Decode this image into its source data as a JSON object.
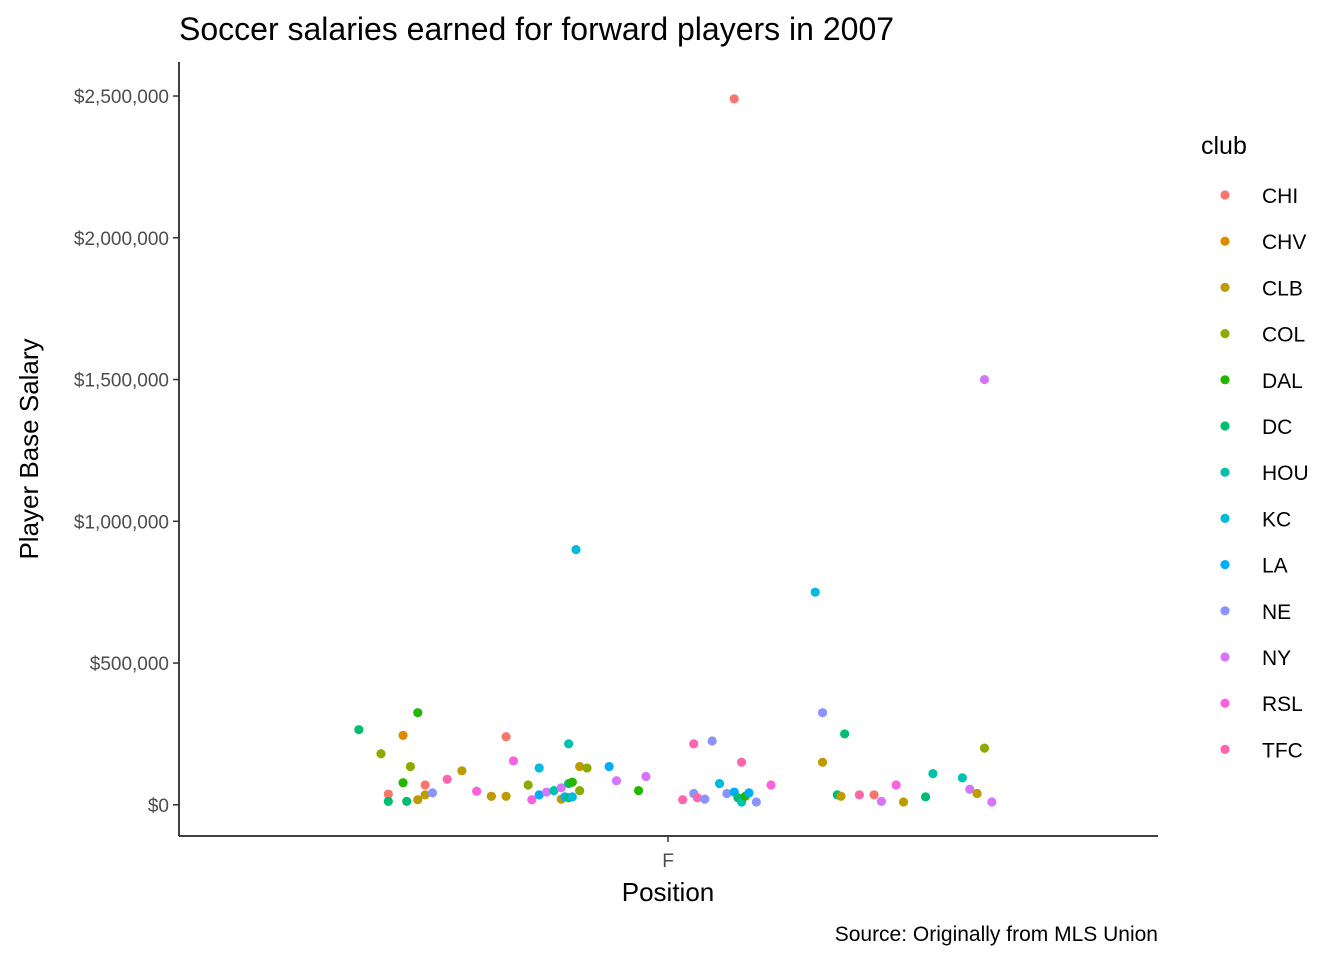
{
  "chart_data": {
    "type": "scatter",
    "title": "Soccer salaries earned for forward players in 2007",
    "xlabel": "Position",
    "ylabel": "Player Base Salary",
    "caption": "Source: Originally from MLS Union",
    "x_categories": [
      "F"
    ],
    "ylim": [
      -110000,
      2620000
    ],
    "y_ticks": [
      0,
      500000,
      1000000,
      1500000,
      2000000,
      2500000
    ],
    "y_tick_labels": [
      "$0",
      "$500,000",
      "$1,000,000",
      "$1,500,000",
      "$2,000,000",
      "$2,500,000"
    ],
    "grid": false,
    "legend": {
      "title": "club",
      "placement": "right",
      "entries": [
        "CHI",
        "CHV",
        "CLB",
        "COL",
        "DAL",
        "DC",
        "HOU",
        "KC",
        "LA",
        "NE",
        "NY",
        "RSL",
        "TFC"
      ]
    },
    "colors": {
      "CHI": "#F8766D",
      "CHV": "#E18A00",
      "CLB": "#BE9C00",
      "COL": "#8CAB00",
      "DAL": "#24B700",
      "DC": "#00BE70",
      "HOU": "#00C1AB",
      "KC": "#00BBDA",
      "LA": "#00ACFC",
      "NE": "#8B93FF",
      "NY": "#D575FE",
      "RSL": "#F962DD",
      "TFC": "#FF65AC"
    },
    "jitter_note": "horizontal spread within category F is random jitter",
    "points": [
      {
        "club": "DC",
        "x": -0.42,
        "y": 265000
      },
      {
        "club": "COL",
        "x": -0.39,
        "y": 180000
      },
      {
        "club": "CHI",
        "x": -0.38,
        "y": 38000
      },
      {
        "club": "DC",
        "x": -0.38,
        "y": 12000
      },
      {
        "club": "CHV",
        "x": -0.36,
        "y": 245000
      },
      {
        "club": "DAL",
        "x": -0.36,
        "y": 78000
      },
      {
        "club": "DC",
        "x": -0.355,
        "y": 12000
      },
      {
        "club": "COL",
        "x": -0.35,
        "y": 135000
      },
      {
        "club": "DAL",
        "x": -0.34,
        "y": 325000
      },
      {
        "club": "CLB",
        "x": -0.34,
        "y": 18000
      },
      {
        "club": "CLB",
        "x": -0.33,
        "y": 35000
      },
      {
        "club": "CHI",
        "x": -0.33,
        "y": 70000
      },
      {
        "club": "NE",
        "x": -0.32,
        "y": 42000
      },
      {
        "club": "TFC",
        "x": -0.3,
        "y": 90000
      },
      {
        "club": "CLB",
        "x": -0.28,
        "y": 120000
      },
      {
        "club": "RSL",
        "x": -0.26,
        "y": 48000
      },
      {
        "club": "NY",
        "x": -0.24,
        "y": 30000
      },
      {
        "club": "CLB",
        "x": -0.24,
        "y": 30000
      },
      {
        "club": "CLB",
        "x": -0.22,
        "y": 30000
      },
      {
        "club": "CHI",
        "x": -0.22,
        "y": 240000
      },
      {
        "club": "RSL",
        "x": -0.21,
        "y": 155000
      },
      {
        "club": "COL",
        "x": -0.19,
        "y": 70000
      },
      {
        "club": "RSL",
        "x": -0.185,
        "y": 18000
      },
      {
        "club": "LA",
        "x": -0.175,
        "y": 35000
      },
      {
        "club": "KC",
        "x": -0.175,
        "y": 130000
      },
      {
        "club": "NY",
        "x": -0.165,
        "y": 45000
      },
      {
        "club": "HOU",
        "x": -0.155,
        "y": 50000
      },
      {
        "club": "NY",
        "x": -0.145,
        "y": 60000
      },
      {
        "club": "CLB",
        "x": -0.145,
        "y": 20000
      },
      {
        "club": "LA",
        "x": -0.14,
        "y": 28000
      },
      {
        "club": "DC",
        "x": -0.135,
        "y": 75000
      },
      {
        "club": "DC",
        "x": -0.135,
        "y": 25000
      },
      {
        "club": "HOU",
        "x": -0.135,
        "y": 215000
      },
      {
        "club": "KC",
        "x": -0.13,
        "y": 28000
      },
      {
        "club": "KC",
        "x": -0.125,
        "y": 900000
      },
      {
        "club": "DAL",
        "x": -0.13,
        "y": 80000
      },
      {
        "club": "CLB",
        "x": -0.12,
        "y": 135000
      },
      {
        "club": "COL",
        "x": -0.12,
        "y": 50000
      },
      {
        "club": "COL",
        "x": -0.11,
        "y": 130000
      },
      {
        "club": "LA",
        "x": -0.08,
        "y": 135000
      },
      {
        "club": "NY",
        "x": -0.07,
        "y": 85000
      },
      {
        "club": "DAL",
        "x": -0.04,
        "y": 50000
      },
      {
        "club": "NY",
        "x": -0.03,
        "y": 100000
      },
      {
        "club": "TFC",
        "x": 0.02,
        "y": 18000
      },
      {
        "club": "TFC",
        "x": 0.035,
        "y": 215000
      },
      {
        "club": "NE",
        "x": 0.035,
        "y": 40000
      },
      {
        "club": "TFC",
        "x": 0.04,
        "y": 25000
      },
      {
        "club": "NE",
        "x": 0.05,
        "y": 20000
      },
      {
        "club": "NE",
        "x": 0.06,
        "y": 225000
      },
      {
        "club": "KC",
        "x": 0.07,
        "y": 75000
      },
      {
        "club": "NE",
        "x": 0.08,
        "y": 40000
      },
      {
        "club": "LA",
        "x": 0.09,
        "y": 45000
      },
      {
        "club": "CHI",
        "x": 0.09,
        "y": 2490000
      },
      {
        "club": "DC",
        "x": 0.095,
        "y": 25000
      },
      {
        "club": "HOU",
        "x": 0.1,
        "y": 10000
      },
      {
        "club": "TFC",
        "x": 0.1,
        "y": 150000
      },
      {
        "club": "DAL",
        "x": 0.105,
        "y": 30000
      },
      {
        "club": "LA",
        "x": 0.11,
        "y": 42000
      },
      {
        "club": "NE",
        "x": 0.12,
        "y": 10000
      },
      {
        "club": "RSL",
        "x": 0.14,
        "y": 70000
      },
      {
        "club": "KC",
        "x": 0.2,
        "y": 750000
      },
      {
        "club": "NE",
        "x": 0.21,
        "y": 325000
      },
      {
        "club": "CLB",
        "x": 0.21,
        "y": 150000
      },
      {
        "club": "DC",
        "x": 0.23,
        "y": 35000
      },
      {
        "club": "CLB",
        "x": 0.235,
        "y": 30000
      },
      {
        "club": "DC",
        "x": 0.24,
        "y": 250000
      },
      {
        "club": "TFC",
        "x": 0.26,
        "y": 35000
      },
      {
        "club": "CHI",
        "x": 0.28,
        "y": 35000
      },
      {
        "club": "NY",
        "x": 0.29,
        "y": 12000
      },
      {
        "club": "RSL",
        "x": 0.31,
        "y": 70000
      },
      {
        "club": "CLB",
        "x": 0.32,
        "y": 10000
      },
      {
        "club": "DC",
        "x": 0.35,
        "y": 28000
      },
      {
        "club": "HOU",
        "x": 0.36,
        "y": 110000
      },
      {
        "club": "HOU",
        "x": 0.4,
        "y": 95000
      },
      {
        "club": "NY",
        "x": 0.41,
        "y": 55000
      },
      {
        "club": "CLB",
        "x": 0.42,
        "y": 40000
      },
      {
        "club": "NY",
        "x": 0.43,
        "y": 1500000
      },
      {
        "club": "COL",
        "x": 0.43,
        "y": 200000
      },
      {
        "club": "NY",
        "x": 0.44,
        "y": 10000
      }
    ]
  }
}
